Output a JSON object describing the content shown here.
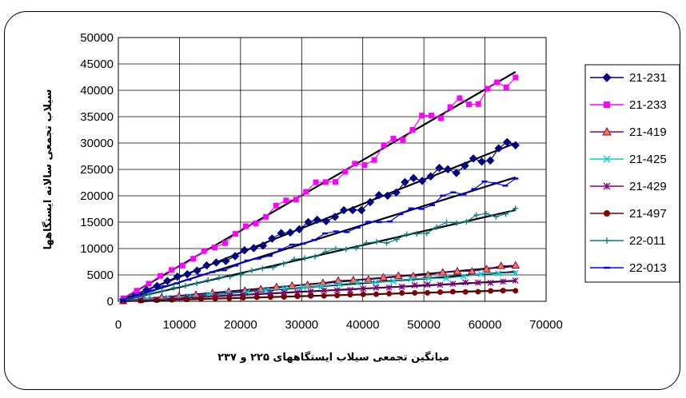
{
  "chart_data": {
    "type": "scatter",
    "xlabel": "میانگین تجمعی سیلاب ایستگاههای ۲۲۵ و ۲۳۷",
    "ylabel": "سیلاب تجمعی سالانه ایستگاهها",
    "xlim": [
      0,
      70000
    ],
    "ylim": [
      0,
      50000
    ],
    "x_ticks": [
      "0",
      "10000",
      "20000",
      "30000",
      "40000",
      "50000",
      "60000",
      "70000"
    ],
    "y_ticks": [
      "0",
      "5000",
      "10000",
      "15000",
      "20000",
      "25000",
      "30000",
      "35000",
      "40000",
      "45000",
      "50000"
    ],
    "grid": true,
    "legend_position": "right",
    "trendlines": "linear fit per series",
    "series": [
      {
        "name": "21-231",
        "color": "#000080",
        "marker": "diamond",
        "end": [
          65000,
          30000
        ],
        "n": 44
      },
      {
        "name": "21-233",
        "color": "#ff00ff",
        "marker": "square",
        "end": [
          65000,
          43500
        ],
        "n": 40
      },
      {
        "name": "21-419",
        "color": "#800080",
        "marker": "triangle",
        "fill": "#ff7f27",
        "end": [
          65000,
          6700
        ],
        "n": 26
      },
      {
        "name": "21-425",
        "color": "#00d0d0",
        "marker": "x",
        "end": [
          65000,
          5600
        ],
        "n": 22
      },
      {
        "name": "21-429",
        "color": "#800080",
        "marker": "star",
        "end": [
          65000,
          3900
        ],
        "n": 30
      },
      {
        "name": "21-497",
        "color": "#800000",
        "marker": "circle",
        "end": [
          65000,
          2100
        ],
        "n": 30
      },
      {
        "name": "22-011",
        "color": "#008080",
        "marker": "plus",
        "end": [
          65000,
          17300
        ],
        "n": 38
      },
      {
        "name": "22-013",
        "color": "#0000ff",
        "marker": "dash",
        "end": [
          65000,
          23500
        ],
        "n": 36
      }
    ]
  }
}
